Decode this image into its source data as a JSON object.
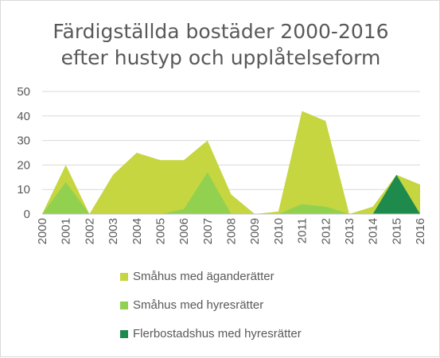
{
  "chart_data": {
    "type": "area",
    "title_lines": [
      "Färdigställda bostäder 2000-2016",
      "efter hustyp och upplåtelseform"
    ],
    "categories": [
      "2000",
      "2001",
      "2002",
      "2003",
      "2004",
      "2005",
      "2006",
      "2007",
      "2008",
      "2009",
      "2010",
      "2011",
      "2012",
      "2013",
      "2014",
      "2015",
      "2016"
    ],
    "series": [
      {
        "name": "Småhus med äganderätter",
        "color": "#c5d640",
        "values": [
          0,
          20,
          0,
          16,
          25,
          22,
          22,
          30,
          8,
          0,
          1,
          42,
          38,
          0,
          3,
          16,
          12
        ]
      },
      {
        "name": "Småhus med hyresrätter",
        "color": "#92d050",
        "values": [
          0,
          13,
          0,
          0,
          0,
          0,
          2,
          17,
          0,
          0,
          0,
          4,
          3,
          0,
          0,
          0,
          0
        ]
      },
      {
        "name": "Flerbostadshus med hyresrätter",
        "color": "#1e8a4c",
        "values": [
          0,
          0,
          0,
          0,
          0,
          0,
          0,
          0,
          0,
          0,
          0,
          0,
          0,
          0,
          0,
          16,
          0
        ]
      }
    ],
    "y_ticks": [
      "0",
      "10",
      "20",
      "30",
      "40",
      "50"
    ],
    "ylim": [
      0,
      50
    ],
    "grid": true,
    "legend_position": "bottom"
  }
}
